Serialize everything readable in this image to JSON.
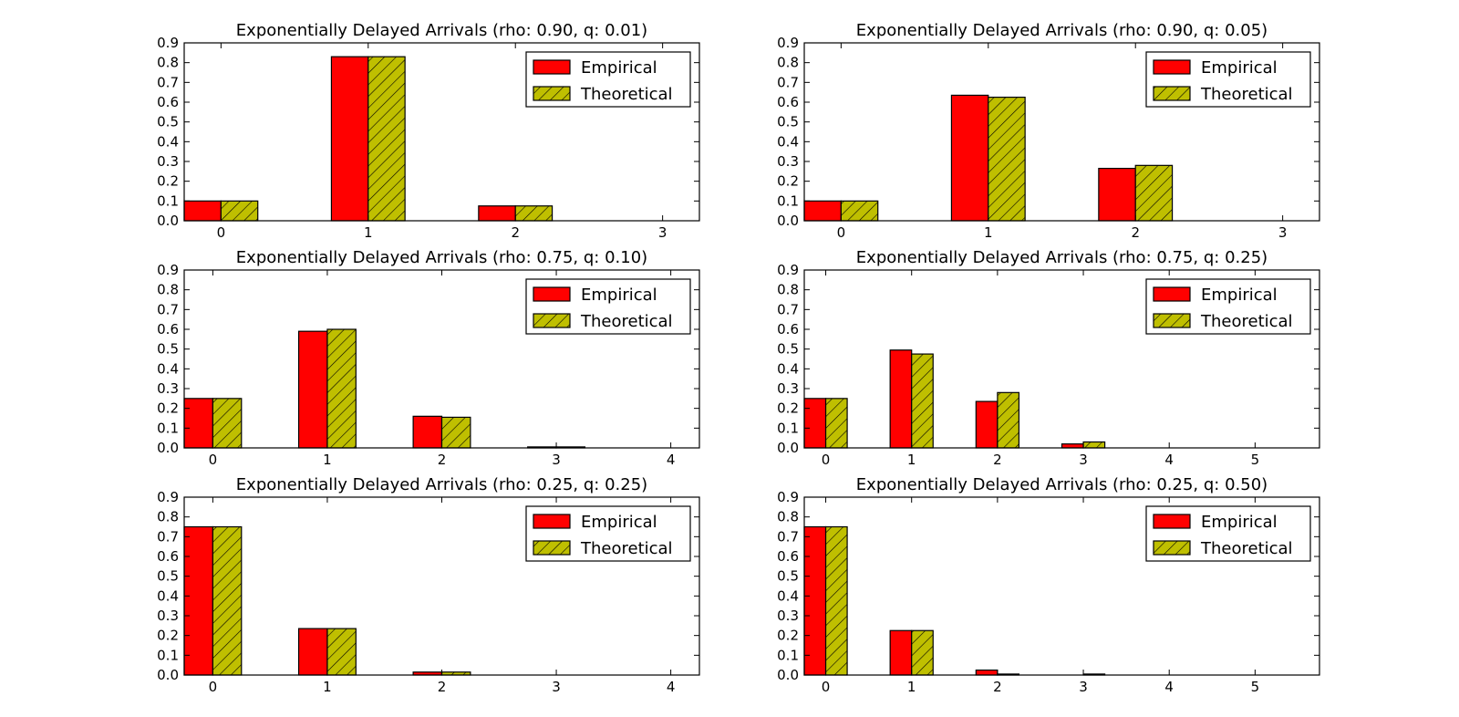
{
  "figure": {
    "colors": {
      "empirical": "#ff0000",
      "theoretical": "#bfbf00",
      "edge": "#000000",
      "hatch": "#000000"
    },
    "legend_placement": "top-right"
  },
  "chart_data": [
    {
      "type": "bar",
      "title": "Exponentially Delayed Arrivals (rho: 0.90, q: 0.01)",
      "categories": [
        "0",
        "1",
        "2",
        "3"
      ],
      "xlim": [
        -0.25,
        3.25
      ],
      "ylim": [
        0,
        0.9
      ],
      "yticks": [
        "0.0",
        "0.1",
        "0.2",
        "0.3",
        "0.4",
        "0.5",
        "0.6",
        "0.7",
        "0.8",
        "0.9"
      ],
      "legend": "top-right",
      "series": [
        {
          "name": "Empirical",
          "values": [
            0.1,
            0.83,
            0.075,
            0.0
          ]
        },
        {
          "name": "Theoretical",
          "values": [
            0.1,
            0.83,
            0.075,
            0.0
          ]
        }
      ]
    },
    {
      "type": "bar",
      "title": "Exponentially Delayed Arrivals (rho: 0.90, q: 0.05)",
      "categories": [
        "0",
        "1",
        "2",
        "3"
      ],
      "xlim": [
        -0.25,
        3.25
      ],
      "ylim": [
        0,
        0.9
      ],
      "yticks": [
        "0.0",
        "0.1",
        "0.2",
        "0.3",
        "0.4",
        "0.5",
        "0.6",
        "0.7",
        "0.8",
        "0.9"
      ],
      "legend": "top-right",
      "series": [
        {
          "name": "Empirical",
          "values": [
            0.1,
            0.635,
            0.265,
            0.0
          ]
        },
        {
          "name": "Theoretical",
          "values": [
            0.1,
            0.625,
            0.28,
            0.0
          ]
        }
      ]
    },
    {
      "type": "bar",
      "title": "Exponentially Delayed Arrivals (rho: 0.75, q: 0.10)",
      "categories": [
        "0",
        "1",
        "2",
        "3",
        "4"
      ],
      "xlim": [
        -0.25,
        4.25
      ],
      "ylim": [
        0,
        0.9
      ],
      "yticks": [
        "0.0",
        "0.1",
        "0.2",
        "0.3",
        "0.4",
        "0.5",
        "0.6",
        "0.7",
        "0.8",
        "0.9"
      ],
      "legend": "top-right",
      "series": [
        {
          "name": "Empirical",
          "values": [
            0.25,
            0.59,
            0.16,
            0.005,
            0.0
          ]
        },
        {
          "name": "Theoretical",
          "values": [
            0.25,
            0.6,
            0.155,
            0.005,
            0.0
          ]
        }
      ]
    },
    {
      "type": "bar",
      "title": "Exponentially Delayed Arrivals (rho: 0.75, q: 0.25)",
      "categories": [
        "0",
        "1",
        "2",
        "3",
        "4",
        "5"
      ],
      "xlim": [
        -0.25,
        5.75
      ],
      "ylim": [
        0,
        0.9
      ],
      "yticks": [
        "0.0",
        "0.1",
        "0.2",
        "0.3",
        "0.4",
        "0.5",
        "0.6",
        "0.7",
        "0.8",
        "0.9"
      ],
      "legend": "top-right",
      "series": [
        {
          "name": "Empirical",
          "values": [
            0.25,
            0.495,
            0.235,
            0.02,
            0.0,
            0.0
          ]
        },
        {
          "name": "Theoretical",
          "values": [
            0.25,
            0.475,
            0.28,
            0.03,
            0.0,
            0.0
          ]
        }
      ]
    },
    {
      "type": "bar",
      "title": "Exponentially Delayed Arrivals (rho: 0.25, q: 0.25)",
      "categories": [
        "0",
        "1",
        "2",
        "3",
        "4"
      ],
      "xlim": [
        -0.25,
        4.25
      ],
      "ylim": [
        0,
        0.9
      ],
      "yticks": [
        "0.0",
        "0.1",
        "0.2",
        "0.3",
        "0.4",
        "0.5",
        "0.6",
        "0.7",
        "0.8",
        "0.9"
      ],
      "legend": "top-right",
      "series": [
        {
          "name": "Empirical",
          "values": [
            0.75,
            0.235,
            0.015,
            0.0,
            0.0
          ]
        },
        {
          "name": "Theoretical",
          "values": [
            0.75,
            0.235,
            0.015,
            0.0,
            0.0
          ]
        }
      ]
    },
    {
      "type": "bar",
      "title": "Exponentially Delayed Arrivals (rho: 0.25, q: 0.50)",
      "categories": [
        "0",
        "1",
        "2",
        "3",
        "4",
        "5"
      ],
      "xlim": [
        -0.25,
        5.75
      ],
      "ylim": [
        0,
        0.9
      ],
      "yticks": [
        "0.0",
        "0.1",
        "0.2",
        "0.3",
        "0.4",
        "0.5",
        "0.6",
        "0.7",
        "0.8",
        "0.9"
      ],
      "legend": "top-right",
      "series": [
        {
          "name": "Empirical",
          "values": [
            0.75,
            0.225,
            0.025,
            0.0,
            0.0,
            0.0
          ]
        },
        {
          "name": "Theoretical",
          "values": [
            0.75,
            0.225,
            0.005,
            0.005,
            0.0,
            0.0
          ]
        }
      ]
    }
  ]
}
